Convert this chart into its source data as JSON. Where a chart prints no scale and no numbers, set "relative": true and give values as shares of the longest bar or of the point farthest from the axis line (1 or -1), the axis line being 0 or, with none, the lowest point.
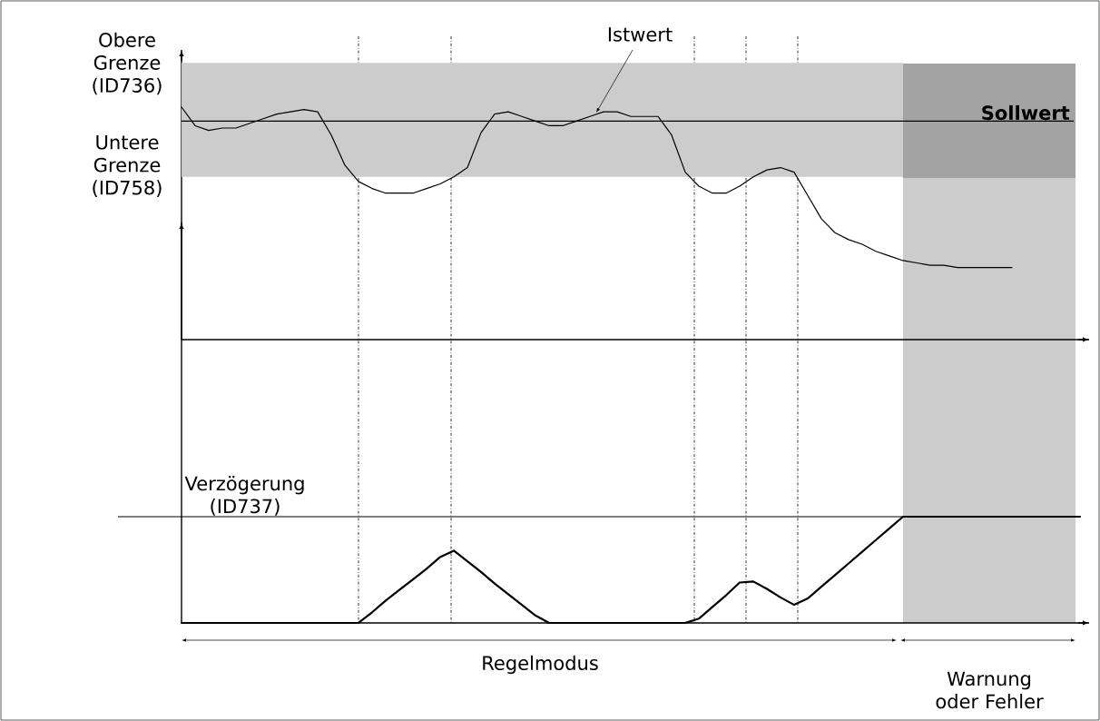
{
  "chart_data": [
    {
      "type": "line",
      "relative": true,
      "categories": [
        null,
        null,
        null,
        null,
        null,
        null,
        null,
        null,
        null,
        null,
        null,
        null,
        null,
        null,
        null,
        null,
        null,
        null,
        null,
        null,
        null,
        null,
        null,
        null,
        null,
        null,
        null,
        null,
        null,
        null,
        null,
        null,
        null,
        null,
        null,
        null,
        null,
        null,
        null,
        null,
        null,
        null,
        null,
        null,
        null,
        null,
        null,
        null,
        null,
        null,
        null,
        null,
        null,
        null,
        null,
        null,
        null,
        null,
        null,
        null,
        null,
        null,
        null,
        null,
        null,
        null,
        null
      ],
      "series": [
        {
          "color": "#000000",
          "values": [
            1.0,
            0.92,
            0.9,
            0.91,
            0.91,
            0.93,
            0.95,
            0.97,
            0.98,
            0.99,
            0.98,
            0.88,
            0.75,
            0.68,
            0.65,
            0.63,
            0.63,
            0.63,
            0.65,
            0.67,
            0.7,
            0.74,
            0.89,
            0.97,
            0.98,
            0.96,
            0.94,
            0.92,
            0.92,
            0.94,
            0.96,
            0.98,
            0.98,
            0.96,
            0.96,
            0.96,
            0.88,
            0.72,
            0.66,
            0.63,
            0.63,
            0.66,
            0.7,
            0.73,
            0.74,
            0.72,
            0.62,
            0.52,
            0.46,
            0.43,
            0.41,
            0.38,
            0.36,
            0.34,
            0.33,
            0.32,
            0.32,
            0.31,
            0.31,
            0.31,
            0.31,
            0.31,
            null,
            null,
            null,
            null,
            null
          ]
        }
      ],
      "ref_lines": [
        {
          "axis": "y",
          "value": 0.94,
          "label": "Sollwert"
        }
      ],
      "bands": [
        {
          "axis": "y",
          "from": 0.7,
          "to": 1.19,
          "color": "#cccccc"
        }
      ],
      "annotations": [
        "Istwert",
        "Obere Grenze (ID736)",
        "Untere Grenze (ID758)"
      ]
    },
    {
      "type": "line",
      "relative": true,
      "categories": [
        null,
        null,
        null,
        null,
        null,
        null,
        null,
        null,
        null,
        null,
        null,
        null,
        null,
        null,
        null,
        null,
        null,
        null,
        null,
        null,
        null,
        null,
        null,
        null,
        null,
        null,
        null,
        null,
        null,
        null,
        null,
        null,
        null,
        null,
        null,
        null,
        null,
        null,
        null,
        null,
        null,
        null,
        null,
        null,
        null,
        null,
        null,
        null,
        null,
        null,
        null,
        null,
        null,
        null,
        null,
        null,
        null,
        null,
        null,
        null,
        null,
        null,
        null,
        null,
        null,
        null,
        null
      ],
      "series": [
        {
          "color": "#000000",
          "values": [
            0,
            0,
            0,
            0,
            0,
            0,
            0,
            0,
            0,
            0,
            0,
            0,
            0,
            0,
            0.1,
            0.21,
            0.31,
            0.41,
            0.51,
            0.62,
            0.68,
            0.58,
            0.48,
            0.37,
            0.27,
            0.17,
            0.07,
            0,
            0,
            0,
            0,
            0,
            0,
            0,
            0,
            0,
            0,
            0,
            0.04,
            0.15,
            0.26,
            0.38,
            0.39,
            0.32,
            0.24,
            0.17,
            0.23,
            0.34,
            0.45,
            0.56,
            0.67,
            0.78,
            0.89,
            1.0,
            1.0,
            1.0,
            1.0,
            1.0,
            1.0,
            1.0,
            1.0,
            1.0,
            1.0,
            1.0,
            1.0,
            1.0,
            1.0
          ]
        }
      ],
      "ref_lines": [
        {
          "axis": "y",
          "value": 1.0,
          "label": "Verzögerung (ID737)"
        }
      ],
      "annotations": [
        "Regelmodus",
        "Warnung oder Fehler"
      ]
    }
  ]
}
